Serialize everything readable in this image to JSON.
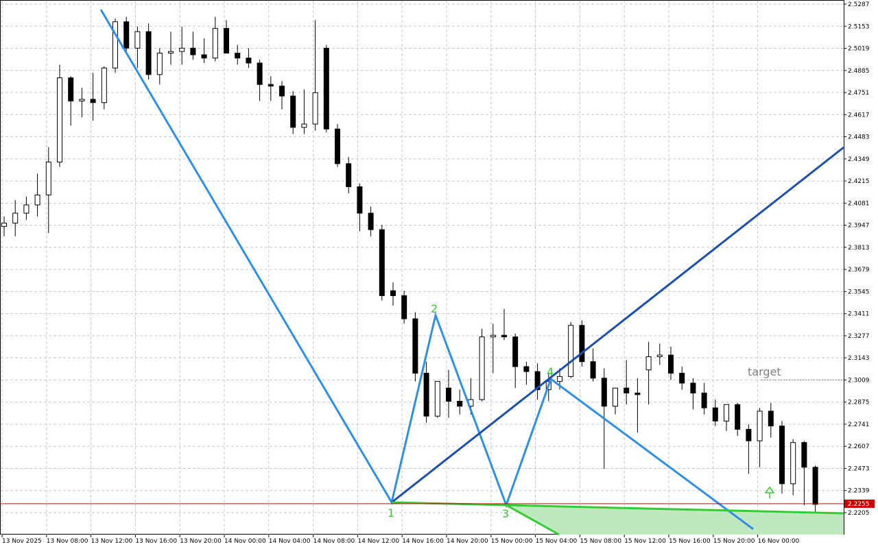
{
  "chart_data": {
    "type": "candlestick",
    "timeframe_labels": [
      "13 Nov 2025",
      "13 Nov 08:00",
      "13 Nov 12:00",
      "13 Nov 16:00",
      "13 Nov 20:00",
      "14 Nov 00:00",
      "14 Nov 04:00",
      "14 Nov 08:00",
      "14 Nov 12:00",
      "14 Nov 16:00",
      "14 Nov 20:00",
      "15 Nov 00:00",
      "15 Nov 04:00",
      "15 Nov 08:00",
      "15 Nov 12:00",
      "15 Nov 16:00",
      "15 Nov 20:00",
      "16 Nov 00:00"
    ],
    "price_ticks": [
      "2.5287",
      "2.5153",
      "2.5019",
      "2.4885",
      "2.4751",
      "2.4617",
      "2.4483",
      "2.4349",
      "2.4215",
      "2.4081",
      "2.3947",
      "2.3813",
      "2.3679",
      "2.3545",
      "2.3411",
      "2.3277",
      "2.3143",
      "2.3009",
      "2.2875",
      "2.2741",
      "2.2607",
      "2.2473",
      "2.2339",
      "2.2205"
    ],
    "ylim": [
      2.2135,
      2.5287
    ],
    "grid": true,
    "current_price": "2.2255",
    "colors": {
      "bull_body": "#ffffff",
      "bear_body": "#000000",
      "candle_outline": "#000000",
      "grid": "#c8c8c8",
      "trend_line": "#2e8fe8",
      "channel_line": "#1a4fb0",
      "support_line": "#33cc33",
      "support_fill": "#bfe8bf",
      "current_price_line": "#cc0000",
      "price_badge": "#cc0000",
      "wave_label": "#33cc33",
      "target_text": "#808080"
    },
    "candles": [
      {
        "t": "13 Nov 2025 00:00",
        "o": 2.394,
        "h": 2.4,
        "l": 2.388,
        "c": 2.396
      },
      {
        "t": "13 Nov 2025 01:00",
        "o": 2.396,
        "h": 2.41,
        "l": 2.388,
        "c": 2.402
      },
      {
        "t": "13 Nov 2025 02:00",
        "o": 2.402,
        "h": 2.412,
        "l": 2.398,
        "c": 2.407
      },
      {
        "t": "13 Nov 2025 03:00",
        "o": 2.407,
        "h": 2.426,
        "l": 2.4,
        "c": 2.413
      },
      {
        "t": "13 Nov 2025 04:00",
        "o": 2.413,
        "h": 2.442,
        "l": 2.39,
        "c": 2.433
      },
      {
        "t": "13 Nov 2025 05:00",
        "o": 2.433,
        "h": 2.492,
        "l": 2.43,
        "c": 2.484
      },
      {
        "t": "13 Nov 2025 06:00",
        "o": 2.484,
        "h": 2.485,
        "l": 2.455,
        "c": 2.47
      },
      {
        "t": "13 Nov 2025 07:00",
        "o": 2.47,
        "h": 2.478,
        "l": 2.46,
        "c": 2.471
      },
      {
        "t": "13 Nov 2025 08:00",
        "o": 2.471,
        "h": 2.487,
        "l": 2.458,
        "c": 2.469
      },
      {
        "t": "13 Nov 2025 09:00",
        "o": 2.469,
        "h": 2.491,
        "l": 2.465,
        "c": 2.49
      },
      {
        "t": "13 Nov 2025 10:00",
        "o": 2.49,
        "h": 2.52,
        "l": 2.487,
        "c": 2.518
      },
      {
        "t": "13 Nov 2025 11:00",
        "o": 2.518,
        "h": 2.521,
        "l": 2.5,
        "c": 2.502
      },
      {
        "t": "13 Nov 2025 12:00",
        "o": 2.502,
        "h": 2.515,
        "l": 2.49,
        "c": 2.512
      },
      {
        "t": "13 Nov 2025 13:00",
        "o": 2.512,
        "h": 2.517,
        "l": 2.483,
        "c": 2.486
      },
      {
        "t": "13 Nov 2025 14:00",
        "o": 2.486,
        "h": 2.502,
        "l": 2.48,
        "c": 2.499
      },
      {
        "t": "13 Nov 2025 15:00",
        "o": 2.499,
        "h": 2.512,
        "l": 2.492,
        "c": 2.5
      },
      {
        "t": "13 Nov 2025 16:00",
        "o": 2.5,
        "h": 2.515,
        "l": 2.492,
        "c": 2.502
      },
      {
        "t": "13 Nov 2025 17:00",
        "o": 2.502,
        "h": 2.512,
        "l": 2.495,
        "c": 2.498
      },
      {
        "t": "13 Nov 2025 18:00",
        "o": 2.498,
        "h": 2.508,
        "l": 2.493,
        "c": 2.496
      },
      {
        "t": "13 Nov 2025 19:00",
        "o": 2.496,
        "h": 2.521,
        "l": 2.494,
        "c": 2.514
      },
      {
        "t": "13 Nov 2025 20:00",
        "o": 2.514,
        "h": 2.519,
        "l": 2.499,
        "c": 2.499
      },
      {
        "t": "13 Nov 2025 21:00",
        "o": 2.499,
        "h": 2.504,
        "l": 2.492,
        "c": 2.496
      },
      {
        "t": "13 Nov 2025 22:00",
        "o": 2.496,
        "h": 2.502,
        "l": 2.49,
        "c": 2.493
      },
      {
        "t": "13 Nov 2025 23:00",
        "o": 2.493,
        "h": 2.495,
        "l": 2.47,
        "c": 2.48
      },
      {
        "t": "14 Nov 2025 00:00",
        "o": 2.48,
        "h": 2.485,
        "l": 2.47,
        "c": 2.479
      },
      {
        "t": "14 Nov 2025 01:00",
        "o": 2.479,
        "h": 2.482,
        "l": 2.465,
        "c": 2.473
      },
      {
        "t": "14 Nov 2025 02:00",
        "o": 2.473,
        "h": 2.476,
        "l": 2.45,
        "c": 2.454
      },
      {
        "t": "14 Nov 2025 03:00",
        "o": 2.454,
        "h": 2.477,
        "l": 2.45,
        "c": 2.456
      },
      {
        "t": "14 Nov 2025 04:00",
        "o": 2.456,
        "h": 2.519,
        "l": 2.452,
        "c": 2.475
      },
      {
        "t": "14 Nov 2025 05:00",
        "o": 2.502,
        "h": 2.504,
        "l": 2.451,
        "c": 2.453
      },
      {
        "t": "14 Nov 2025 06:00",
        "o": 2.453,
        "h": 2.456,
        "l": 2.43,
        "c": 2.432
      },
      {
        "t": "14 Nov 2025 07:00",
        "o": 2.432,
        "h": 2.436,
        "l": 2.414,
        "c": 2.418
      },
      {
        "t": "14 Nov 2025 08:00",
        "o": 2.418,
        "h": 2.42,
        "l": 2.391,
        "c": 2.402
      },
      {
        "t": "14 Nov 2025 09:00",
        "o": 2.402,
        "h": 2.406,
        "l": 2.388,
        "c": 2.392
      },
      {
        "t": "14 Nov 2025 10:00",
        "o": 2.392,
        "h": 2.395,
        "l": 2.349,
        "c": 2.352
      },
      {
        "t": "14 Nov 2025 11:00",
        "o": 2.355,
        "h": 2.36,
        "l": 2.346,
        "c": 2.352
      },
      {
        "t": "14 Nov 2025 12:00",
        "o": 2.352,
        "h": 2.355,
        "l": 2.335,
        "c": 2.338
      },
      {
        "t": "14 Nov 2025 13:00",
        "o": 2.338,
        "h": 2.342,
        "l": 2.3,
        "c": 2.305
      },
      {
        "t": "14 Nov 2025 14:00",
        "o": 2.305,
        "h": 2.312,
        "l": 2.275,
        "c": 2.279
      },
      {
        "t": "14 Nov 2025 15:00",
        "o": 2.279,
        "h": 2.3,
        "l": 2.278,
        "c": 2.3
      },
      {
        "t": "14 Nov 2025 16:00",
        "o": 2.296,
        "h": 2.307,
        "l": 2.278,
        "c": 2.288
      },
      {
        "t": "14 Nov 2025 17:00",
        "o": 2.288,
        "h": 2.295,
        "l": 2.28,
        "c": 2.285
      },
      {
        "t": "14 Nov 2025 18:00",
        "o": 2.285,
        "h": 2.302,
        "l": 2.28,
        "c": 2.289
      },
      {
        "t": "14 Nov 2025 19:00",
        "o": 2.289,
        "h": 2.332,
        "l": 2.288,
        "c": 2.327
      },
      {
        "t": "14 Nov 2025 20:00",
        "o": 2.327,
        "h": 2.335,
        "l": 2.305,
        "c": 2.328
      },
      {
        "t": "14 Nov 2025 21:00",
        "o": 2.328,
        "h": 2.344,
        "l": 2.325,
        "c": 2.327
      },
      {
        "t": "14 Nov 2025 22:00",
        "o": 2.327,
        "h": 2.329,
        "l": 2.296,
        "c": 2.309
      },
      {
        "t": "14 Nov 2025 23:00",
        "o": 2.309,
        "h": 2.312,
        "l": 2.298,
        "c": 2.306
      },
      {
        "t": "15 Nov 2025 00:00",
        "o": 2.306,
        "h": 2.311,
        "l": 2.289,
        "c": 2.295
      },
      {
        "t": "15 Nov 2025 01:00",
        "o": 2.295,
        "h": 2.305,
        "l": 2.288,
        "c": 2.3
      },
      {
        "t": "15 Nov 2025 02:00",
        "o": 2.3,
        "h": 2.308,
        "l": 2.295,
        "c": 2.303
      },
      {
        "t": "15 Nov 2025 03:00",
        "o": 2.303,
        "h": 2.336,
        "l": 2.302,
        "c": 2.334
      },
      {
        "t": "15 Nov 2025 04:00",
        "o": 2.334,
        "h": 2.337,
        "l": 2.309,
        "c": 2.312
      },
      {
        "t": "15 Nov 2025 05:00",
        "o": 2.312,
        "h": 2.32,
        "l": 2.3,
        "c": 2.302
      },
      {
        "t": "15 Nov 2025 06:00",
        "o": 2.302,
        "h": 2.308,
        "l": 2.247,
        "c": 2.285
      },
      {
        "t": "15 Nov 2025 07:00",
        "o": 2.285,
        "h": 2.296,
        "l": 2.28,
        "c": 2.296
      },
      {
        "t": "15 Nov 2025 08:00",
        "o": 2.296,
        "h": 2.313,
        "l": 2.286,
        "c": 2.293
      },
      {
        "t": "15 Nov 2025 09:00",
        "o": 2.293,
        "h": 2.302,
        "l": 2.269,
        "c": 2.292
      },
      {
        "t": "15 Nov 2025 10:00",
        "o": 2.307,
        "h": 2.324,
        "l": 2.286,
        "c": 2.315
      },
      {
        "t": "15 Nov 2025 11:00",
        "o": 2.315,
        "h": 2.323,
        "l": 2.31,
        "c": 2.316
      },
      {
        "t": "15 Nov 2025 12:00",
        "o": 2.316,
        "h": 2.321,
        "l": 2.301,
        "c": 2.305
      },
      {
        "t": "15 Nov 2025 13:00",
        "o": 2.305,
        "h": 2.309,
        "l": 2.295,
        "c": 2.299
      },
      {
        "t": "15 Nov 2025 14:00",
        "o": 2.299,
        "h": 2.302,
        "l": 2.283,
        "c": 2.293
      },
      {
        "t": "15 Nov 2025 15:00",
        "o": 2.293,
        "h": 2.299,
        "l": 2.28,
        "c": 2.284
      },
      {
        "t": "15 Nov 2025 16:00",
        "o": 2.284,
        "h": 2.289,
        "l": 2.273,
        "c": 2.276
      },
      {
        "t": "15 Nov 2025 17:00",
        "o": 2.276,
        "h": 2.286,
        "l": 2.27,
        "c": 2.286
      },
      {
        "t": "15 Nov 2025 18:00",
        "o": 2.286,
        "h": 2.287,
        "l": 2.267,
        "c": 2.271
      },
      {
        "t": "15 Nov 2025 19:00",
        "o": 2.271,
        "h": 2.274,
        "l": 2.244,
        "c": 2.264
      },
      {
        "t": "15 Nov 2025 20:00",
        "o": 2.264,
        "h": 2.284,
        "l": 2.248,
        "c": 2.282
      },
      {
        "t": "15 Nov 2025 21:00",
        "o": 2.282,
        "h": 2.287,
        "l": 2.266,
        "c": 2.273
      },
      {
        "t": "15 Nov 2025 22:00",
        "o": 2.273,
        "h": 2.276,
        "l": 2.232,
        "c": 2.238
      },
      {
        "t": "15 Nov 2025 23:00",
        "o": 2.238,
        "h": 2.265,
        "l": 2.231,
        "c": 2.263
      },
      {
        "t": "16 Nov 2025 00:00",
        "o": 2.263,
        "h": 2.264,
        "l": 2.225,
        "c": 2.248
      },
      {
        "t": "16 Nov 2025 01:00",
        "o": 2.248,
        "h": 2.249,
        "l": 2.22,
        "c": 2.2255
      }
    ],
    "wave_labels": [
      "1",
      "2",
      "3",
      "4"
    ],
    "target_label": "target",
    "target_price": 2.3009
  }
}
